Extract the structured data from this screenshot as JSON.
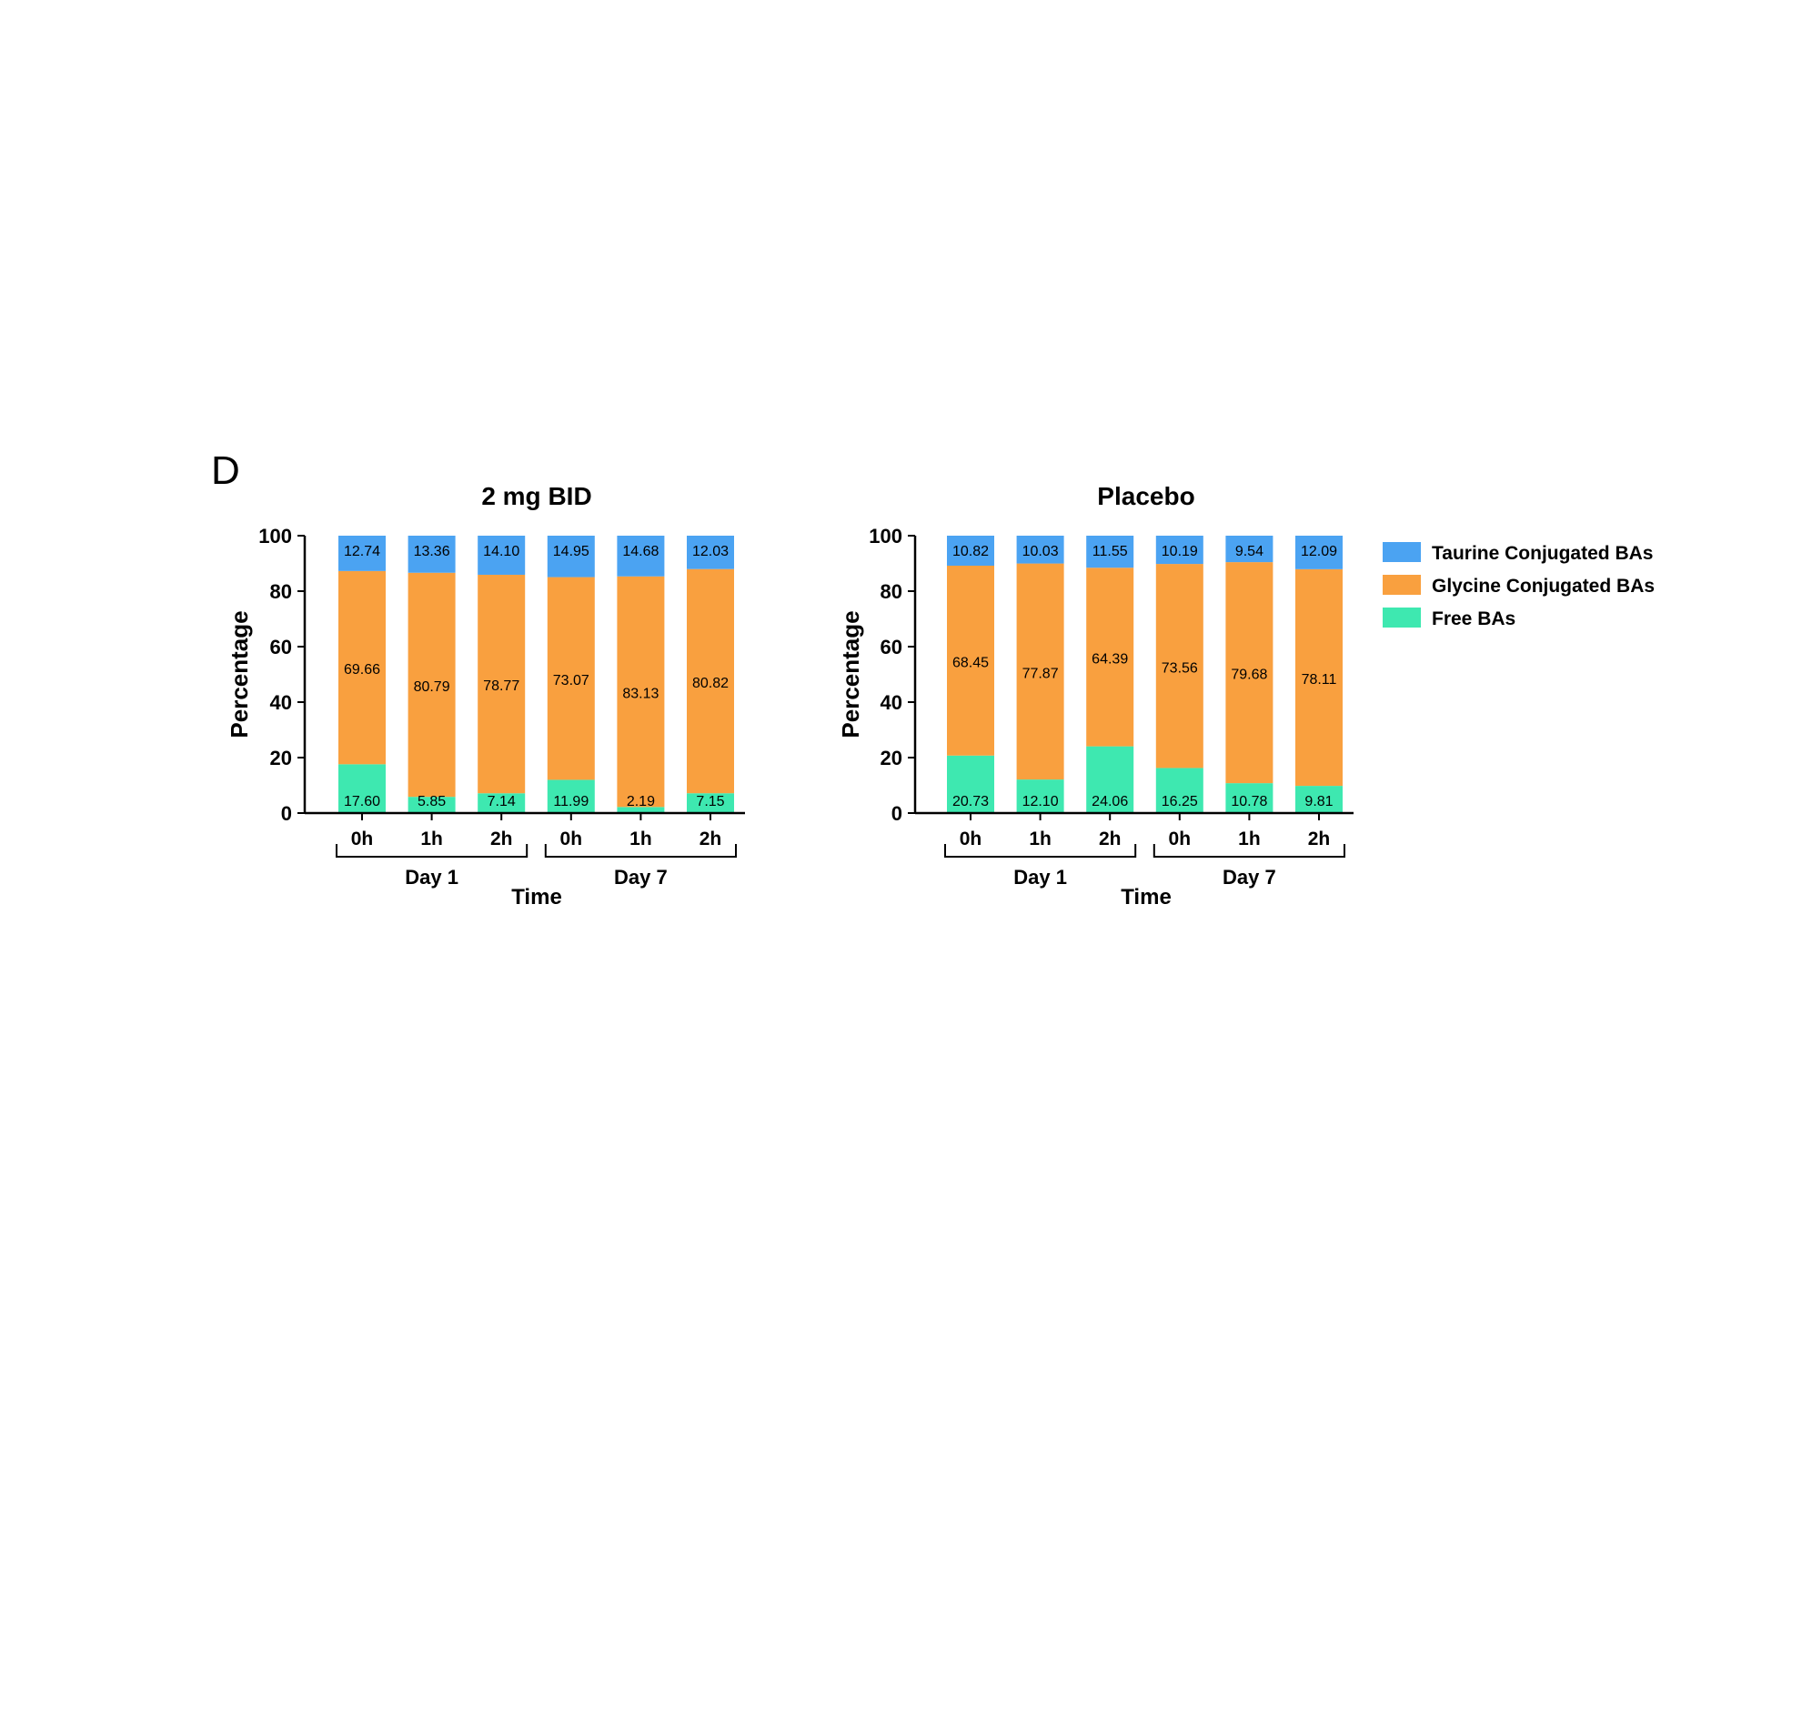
{
  "figure_label": "D",
  "chart_data": [
    {
      "type": "bar",
      "stacked": true,
      "title": "2 mg BID",
      "ylabel": "Percentage",
      "xlabel": "Time",
      "ylim": [
        0,
        100
      ],
      "yticks": [
        0,
        20,
        40,
        60,
        80,
        100
      ],
      "categories": [
        "0h",
        "1h",
        "2h",
        "0h",
        "1h",
        "2h"
      ],
      "groups": [
        {
          "label": "Day 1",
          "span": [
            0,
            2
          ]
        },
        {
          "label": "Day 7",
          "span": [
            3,
            5
          ]
        }
      ],
      "series": [
        {
          "name": "Free BAs",
          "values": [
            17.6,
            5.85,
            7.14,
            11.99,
            2.19,
            7.15
          ],
          "labels": [
            "17.60",
            "5.85",
            "7.14",
            "11.99",
            "2.19",
            "7.15"
          ]
        },
        {
          "name": "Glycine Conjugated BAs",
          "values": [
            69.66,
            80.79,
            78.77,
            73.07,
            83.13,
            80.82
          ],
          "labels": [
            "69.66",
            "80.79",
            "78.77",
            "73.07",
            "83.13",
            "80.82"
          ]
        },
        {
          "name": "Taurine Conjugated BAs",
          "values": [
            12.74,
            13.36,
            14.1,
            14.95,
            14.68,
            12.03
          ],
          "labels": [
            "12.74",
            "13.36",
            "14.10",
            "14.95",
            "14.68",
            "12.03"
          ]
        }
      ]
    },
    {
      "type": "bar",
      "stacked": true,
      "title": "Placebo",
      "ylabel": "Percentage",
      "xlabel": "Time",
      "ylim": [
        0,
        100
      ],
      "yticks": [
        0,
        20,
        40,
        60,
        80,
        100
      ],
      "categories": [
        "0h",
        "1h",
        "2h",
        "0h",
        "1h",
        "2h"
      ],
      "groups": [
        {
          "label": "Day 1",
          "span": [
            0,
            2
          ]
        },
        {
          "label": "Day 7",
          "span": [
            3,
            5
          ]
        }
      ],
      "series": [
        {
          "name": "Free BAs",
          "values": [
            20.73,
            12.1,
            24.06,
            16.25,
            10.78,
            9.81
          ],
          "labels": [
            "20.73",
            "12.10",
            "24.06",
            "16.25",
            "10.78",
            "9.81"
          ]
        },
        {
          "name": "Glycine Conjugated BAs",
          "values": [
            68.45,
            77.87,
            64.39,
            73.56,
            79.68,
            78.11
          ],
          "labels": [
            "68.45",
            "77.87",
            "64.39",
            "73.56",
            "79.68",
            "78.11"
          ]
        },
        {
          "name": "Taurine Conjugated BAs",
          "values": [
            10.82,
            10.03,
            11.55,
            10.19,
            9.54,
            12.09
          ],
          "labels": [
            "10.82",
            "10.03",
            "11.55",
            "10.19",
            "9.54",
            "12.09"
          ]
        }
      ]
    }
  ],
  "legend": {
    "items": [
      {
        "label": "Taurine Conjugated BAs",
        "color": "#4BA3F2"
      },
      {
        "label": "Glycine Conjugated BAs",
        "color": "#F9A03F"
      },
      {
        "label": "Free BAs",
        "color": "#3EE8B0"
      }
    ]
  },
  "colors": {
    "Free BAs": "#3EE8B0",
    "Glycine Conjugated BAs": "#F9A03F",
    "Taurine Conjugated BAs": "#4BA3F2"
  }
}
